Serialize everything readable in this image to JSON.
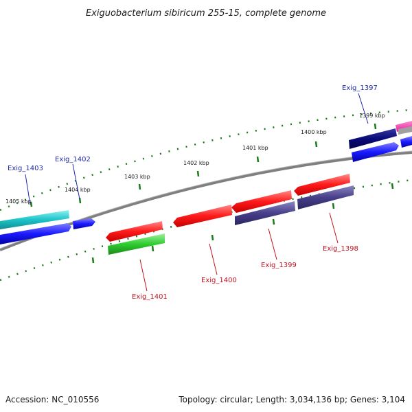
{
  "title": "Exiguobacterium sibiricum 255-15, complete genome",
  "footer": {
    "accession": "Accession: NC_010556",
    "summary": "Topology: circular; Length: 3,034,136 bp; Genes: 3,104"
  },
  "ticks": [
    "1405 kbp",
    "1404 kbp",
    "1403 kbp",
    "1402 kbp",
    "1401 kbp",
    "1400 kbp",
    "1399 kbp"
  ],
  "genes": [
    {
      "name": "Exig_1403",
      "strand": "+",
      "color": "#1cc3c9"
    },
    {
      "name": "Exig_1402",
      "strand": "+",
      "color": "#1a1aff"
    },
    {
      "name": "Exig_1401",
      "strand": "-",
      "color": "#ff1a1a"
    },
    {
      "name": "Exig_1400",
      "strand": "-",
      "color": "#ff1a1a"
    },
    {
      "name": "Exig_1399",
      "strand": "-",
      "color": "#ff1a1a"
    },
    {
      "name": "Exig_1398",
      "strand": "-",
      "color": "#ff1a1a"
    },
    {
      "name": "Exig_1397",
      "strand": "+",
      "color": "#0a0a7a"
    }
  ],
  "colors": {
    "backbone": "#7f7f7f",
    "tick": "#1a7a1a",
    "cds_forward": "#1a1aff",
    "cds_reverse": "#473f8a",
    "cds_green": "#2ecc2e",
    "label_forward": "#1f2aa8",
    "label_reverse": "#c1121f"
  }
}
